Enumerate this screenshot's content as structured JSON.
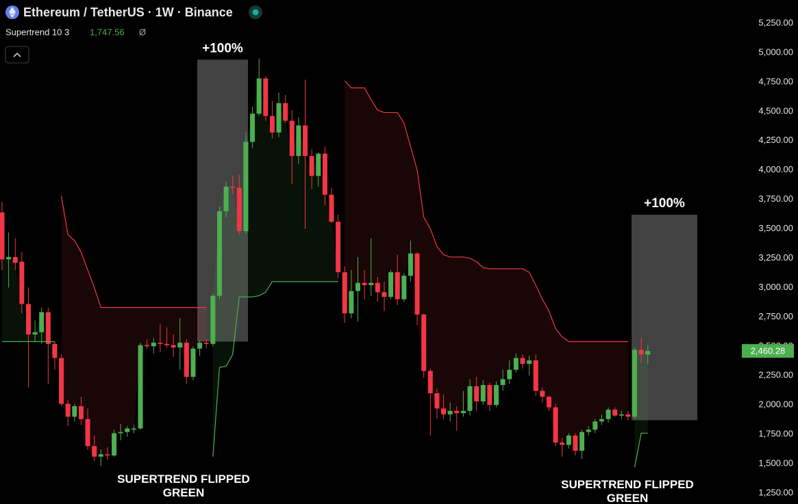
{
  "chart_data": {
    "type": "candlestick",
    "title": "Ethereum / TetherUS · 1W · Binance",
    "indicator": {
      "label": "Supertrend 10 3",
      "value": 1747.56,
      "value_label": "1,747.56",
      "symbol": "Ø"
    },
    "up_color": "#4caf50",
    "down_color": "#f23645",
    "open": [
      3640,
      3240,
      3260,
      3220,
      2860,
      2600,
      2620,
      2790,
      2520,
      2400,
      2010,
      1900,
      1990,
      1880,
      1650,
      1560,
      1580,
      1570,
      1760,
      1770,
      1790,
      1800,
      2510,
      2500,
      2530,
      2520,
      2510,
      2490,
      2530,
      2240,
      2480,
      2530,
      2520,
      2930,
      3650,
      3860,
      3850,
      3480,
      4240,
      4480,
      4780,
      4460,
      4320,
      4570,
      4420,
      4120,
      4380,
      4120,
      3950,
      4140,
      3790,
      3560,
      3130,
      2780,
      2970,
      3040,
      3020,
      3040,
      2960,
      2920,
      3130,
      2900,
      3100,
      3290,
      2770,
      2290,
      2100,
      1970,
      1920,
      1950,
      1930,
      1950,
      2160,
      2030,
      2170,
      2000,
      2170,
      2220,
      2300,
      2400,
      2350,
      2380,
      2120,
      2070,
      1980,
      1680,
      1660,
      1740,
      1610,
      1770,
      1790,
      1860,
      1880,
      1960,
      1910,
      1920,
      1900,
      2470,
      2430
    ],
    "high": [
      3730,
      3470,
      3420,
      3300,
      3000,
      2720,
      2830,
      2830,
      2540,
      2430,
      2040,
      2010,
      2070,
      1970,
      1740,
      1620,
      1640,
      1790,
      1840,
      1820,
      1830,
      2530,
      2560,
      2570,
      2690,
      2660,
      2600,
      2740,
      2560,
      2500,
      2550,
      2560,
      2950,
      3690,
      3900,
      3950,
      3960,
      4320,
      4540,
      4950,
      4800,
      4590,
      4660,
      4640,
      4510,
      4450,
      4770,
      4180,
      4150,
      4200,
      3850,
      3620,
      3180,
      3150,
      3260,
      3150,
      3420,
      3090,
      3050,
      3150,
      3280,
      3120,
      3400,
      3300,
      2780,
      2310,
      2140,
      2090,
      2020,
      1990,
      2120,
      2220,
      2240,
      2210,
      2190,
      2200,
      2300,
      2380,
      2440,
      2430,
      2420,
      2430,
      2150,
      2080,
      2010,
      1720,
      1760,
      1760,
      1790,
      1820,
      1880,
      1920,
      1980,
      1980,
      1950,
      1950,
      2490,
      2570,
      2510
    ],
    "low": [
      3150,
      3000,
      3150,
      2780,
      2150,
      2540,
      2520,
      2180,
      2300,
      1990,
      1820,
      1860,
      1830,
      1620,
      1520,
      1480,
      1530,
      1560,
      1700,
      1730,
      1760,
      1790,
      2480,
      2440,
      2450,
      2490,
      2410,
      2300,
      2180,
      2210,
      2420,
      2480,
      2500,
      2900,
      3600,
      3800,
      3450,
      3460,
      4190,
      4460,
      4420,
      4270,
      4280,
      4400,
      3880,
      4050,
      3500,
      3840,
      3860,
      3700,
      3550,
      3080,
      2700,
      2740,
      2710,
      2900,
      2930,
      2880,
      2800,
      2900,
      2850,
      2880,
      3050,
      2680,
      2230,
      1740,
      1880,
      1880,
      1860,
      1780,
      1900,
      1910,
      1950,
      2000,
      1950,
      1980,
      2120,
      2180,
      2280,
      2310,
      2250,
      2080,
      2020,
      1950,
      1650,
      1560,
      1630,
      1570,
      1540,
      1740,
      1760,
      1830,
      1850,
      1900,
      1880,
      1870,
      1880,
      2360,
      2350
    ],
    "close": [
      3240,
      3260,
      3210,
      2860,
      2600,
      2620,
      2790,
      2520,
      2400,
      2010,
      1900,
      1990,
      1880,
      1650,
      1560,
      1580,
      1570,
      1760,
      1770,
      1800,
      1800,
      2510,
      2500,
      2530,
      2520,
      2510,
      2490,
      2530,
      2240,
      2480,
      2530,
      2520,
      2930,
      3650,
      3860,
      3850,
      3480,
      4240,
      4480,
      4780,
      4460,
      4320,
      4570,
      4420,
      4120,
      4380,
      4120,
      3950,
      4140,
      3790,
      3560,
      3130,
      2780,
      2970,
      3040,
      3020,
      3040,
      2960,
      2920,
      3130,
      2900,
      3100,
      3290,
      2770,
      2290,
      2100,
      1970,
      1920,
      1950,
      1930,
      1950,
      2160,
      2030,
      2170,
      2000,
      2170,
      2220,
      2300,
      2400,
      2350,
      2380,
      2120,
      2070,
      1980,
      1680,
      1660,
      1740,
      1610,
      1770,
      1790,
      1860,
      1880,
      1960,
      1910,
      1920,
      1900,
      2470,
      2430,
      2460
    ],
    "supertrend_up": [
      2540,
      2540,
      2540,
      2540,
      2540,
      2540,
      2540,
      2540,
      2540,
      null,
      null,
      null,
      null,
      null,
      null,
      null,
      null,
      null,
      null,
      null,
      null,
      null,
      null,
      null,
      null,
      null,
      null,
      null,
      null,
      null,
      null,
      null,
      1560,
      2320,
      2330,
      2430,
      2920,
      2920,
      2920,
      2930,
      2960,
      3050,
      3050,
      3050,
      3050,
      3050,
      3050,
      3050,
      3050,
      3050,
      3050,
      3050,
      null,
      null,
      null,
      null,
      null,
      null,
      null,
      null,
      null,
      null,
      null,
      null,
      null,
      null,
      null,
      null,
      null,
      null,
      null,
      null,
      null,
      null,
      null,
      null,
      null,
      null,
      null,
      null,
      null,
      null,
      null,
      null,
      null,
      null,
      null,
      null,
      null,
      null,
      null,
      null,
      null,
      null,
      null,
      null,
      1470,
      1760,
      1760
    ],
    "supertrend_down": [
      null,
      null,
      null,
      null,
      null,
      null,
      null,
      null,
      null,
      3780,
      3450,
      3400,
      3300,
      3150,
      3000,
      2830,
      2830,
      2830,
      2830,
      2830,
      2830,
      2830,
      2830,
      2830,
      2830,
      2830,
      2830,
      2830,
      2830,
      2830,
      2830,
      2830,
      null,
      null,
      null,
      null,
      null,
      null,
      null,
      null,
      null,
      null,
      null,
      null,
      null,
      null,
      null,
      null,
      null,
      null,
      null,
      null,
      4760,
      4700,
      4700,
      4700,
      4600,
      4510,
      4490,
      4490,
      4490,
      4400,
      4200,
      4000,
      3600,
      3500,
      3350,
      3280,
      3260,
      3260,
      3260,
      3250,
      3220,
      3170,
      3160,
      3160,
      3160,
      3160,
      3160,
      3160,
      3130,
      3020,
      2900,
      2800,
      2650,
      2580,
      2540,
      2540,
      2540,
      2540,
      2540,
      2540,
      2540,
      2540,
      2540,
      2540,
      null,
      null,
      null
    ],
    "ylim": [
      1157,
      5448
    ],
    "yticks": [
      {
        "value": 1250,
        "label": "1,250.00"
      },
      {
        "value": 1500,
        "label": "1,500.00"
      },
      {
        "value": 1750,
        "label": "1,750.00"
      },
      {
        "value": 2000,
        "label": "2,000.00"
      },
      {
        "value": 2250,
        "label": "2,250.00"
      },
      {
        "value": 2500,
        "label": "2,500.00"
      },
      {
        "value": 2750,
        "label": "2,750.00"
      },
      {
        "value": 3000,
        "label": "3,000.00"
      },
      {
        "value": 3250,
        "label": "3,250.00"
      },
      {
        "value": 3500,
        "label": "3,500.00"
      },
      {
        "value": 3750,
        "label": "3,750.00"
      },
      {
        "value": 4000,
        "label": "4,000.00"
      },
      {
        "value": 4250,
        "label": "4,250.00"
      },
      {
        "value": 4500,
        "label": "4,500.00"
      },
      {
        "value": 4750,
        "label": "4,750.00"
      },
      {
        "value": 5000,
        "label": "5,000.00"
      },
      {
        "value": 5250,
        "label": "5,250.00"
      }
    ],
    "last_price": {
      "value": 2460.28,
      "label": "2,460.28"
    },
    "annotations": [
      {
        "label": "+100%",
        "low": 2540,
        "high": 4940
      },
      {
        "label": "+100%",
        "low": 1870,
        "high": 3620
      }
    ],
    "notes": [
      "SUPERTREND FLIPPED GREEN",
      "SUPERTREND FLIPPED GREEN"
    ]
  }
}
